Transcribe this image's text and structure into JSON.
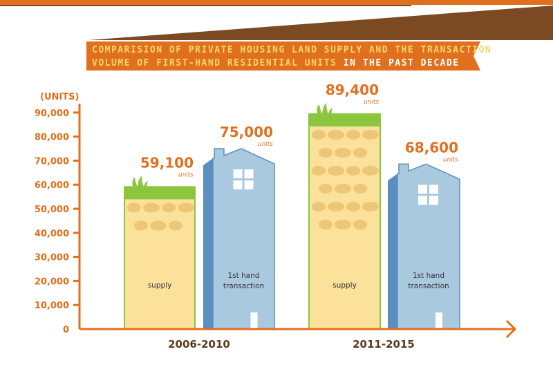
{
  "colors": {
    "accent": "#e1701e",
    "brown": "#7b4a22",
    "title_yellow": "#f6d768",
    "soil": "#fbe19a",
    "stone": "#ecc777",
    "grass": "#8cc63f",
    "building_light": "#a9c9df",
    "building_dark": "#5b8ec1"
  },
  "title": {
    "line1": "COMPARISION OF PRIVATE HOUSING LAND SUPPLY AND THE TRANSACTION",
    "line2a": "VOLUME OF FIRST-HAND RESIDENTIAL UNITS",
    "line2b": " IN THE PAST DECADE"
  },
  "chart_data": {
    "type": "bar",
    "ylabel": "(UNITS)",
    "ylim": [
      0,
      90000
    ],
    "yticks": [
      "0",
      "10,000",
      "20,000",
      "30,000",
      "40,000",
      "50,000",
      "60,000",
      "70,000",
      "80,000",
      "90,000"
    ],
    "categories": [
      "2006-2010",
      "2011-2015"
    ],
    "series": [
      {
        "name": "supply",
        "values": [
          59100,
          89400
        ],
        "labels": [
          "59,100",
          "89,400"
        ]
      },
      {
        "name": "1st hand transaction",
        "values": [
          75000,
          68600
        ],
        "labels": [
          "75,000",
          "68,600"
        ]
      }
    ],
    "value_unit": "units",
    "bar_labels": {
      "supply": "supply",
      "transaction_line1": "1st hand",
      "transaction_line2": "transaction"
    }
  }
}
